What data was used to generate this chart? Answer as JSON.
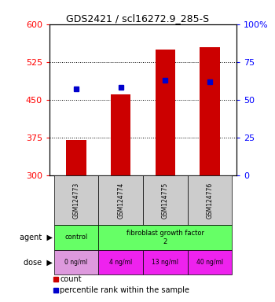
{
  "title": "GDS2421 / scl16272.9_285-S",
  "samples": [
    "GSM124773",
    "GSM124774",
    "GSM124775",
    "GSM124776"
  ],
  "counts": [
    370,
    460,
    550,
    555
  ],
  "percentiles": [
    57,
    58,
    63,
    62
  ],
  "ylim_left": [
    300,
    600
  ],
  "ylim_right": [
    0,
    100
  ],
  "yticks_left": [
    300,
    375,
    450,
    525,
    600
  ],
  "yticks_right": [
    0,
    25,
    50,
    75,
    100
  ],
  "bar_color": "#cc0000",
  "marker_color": "#0000cc",
  "bar_bottom": 300,
  "agent_color": "#66ff66",
  "dose_labels": [
    "0 ng/ml",
    "4 ng/ml",
    "13 ng/ml",
    "40 ng/ml"
  ],
  "dose_color_0": "#dd99dd",
  "dose_color_rest": "#ee22ee",
  "sample_bg_color": "#cccccc",
  "grid_yticks": [
    375,
    450,
    525
  ]
}
